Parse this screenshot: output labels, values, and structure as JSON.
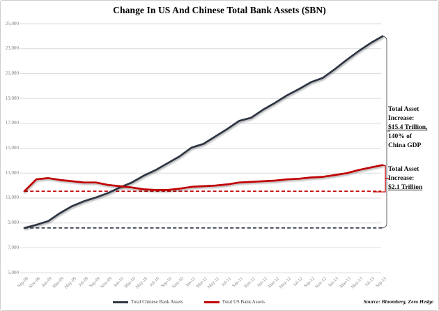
{
  "title": "Change In US And Chinese Total Bank Assets ($BN)",
  "source": "Source: Bloomberg, Zero Hedge",
  "colors": {
    "china_line": "#2d3642",
    "us_line": "#c00000",
    "china_dashed": "#3a424e",
    "us_dashed": "#c00000",
    "gridline": "#dadada",
    "axis_text": "#848484",
    "bracket_black": "#5f6368",
    "bracket_red": "#c00000"
  },
  "legend": [
    {
      "label": "Total Chinese Bank Assets",
      "color": "#2d3642"
    },
    {
      "label": "Total US Bank Assets",
      "color": "#c00000"
    }
  ],
  "annotations": {
    "china": {
      "lines": [
        "Total Asset",
        "Increase:",
        "$15.4 Trillion,",
        "140% of",
        "China GDP"
      ],
      "underline_index": 2
    },
    "us": {
      "lines": [
        "Total Asset",
        "Increase:",
        "$2.1 Trillion"
      ],
      "underline_index": 2
    }
  },
  "yaxis": {
    "ticks": [
      "25,000",
      "23,000",
      "21,000",
      "19,000",
      "17,000",
      "15,000",
      "13,000",
      "11,000",
      "9,000",
      "7,000",
      "5,000"
    ]
  },
  "chart_data": {
    "type": "line",
    "title": "Change In US And Chinese Total Bank Assets ($BN)",
    "xlabel": "",
    "ylabel": "",
    "ylim": [
      5000,
      25000
    ],
    "ytick_step": 2000,
    "grid": true,
    "legend_position": "bottom",
    "x": [
      "Sep-08",
      "Nov-08",
      "Jan-09",
      "Mar-09",
      "May-09",
      "Jul-09",
      "Sep-09",
      "Nov-09",
      "Jan-10",
      "Mar-10",
      "May-10",
      "Jul-10",
      "Sep-10",
      "Nov-10",
      "Jan-11",
      "Mar-11",
      "May-11",
      "Jul-11",
      "Sep-11",
      "Nov-11",
      "Jan-12",
      "Mar-12",
      "May-12",
      "Jul-12",
      "Sep-12",
      "Nov-12",
      "Jan-13",
      "Mar-13",
      "May-13",
      "Jul-13",
      "Sep-13"
    ],
    "series": [
      {
        "name": "Total Chinese Bank Assets",
        "color": "#2d3642",
        "values": [
          8600,
          8850,
          9150,
          9800,
          10350,
          10750,
          11050,
          11400,
          11850,
          12250,
          12800,
          13250,
          13800,
          14350,
          15050,
          15350,
          15950,
          16550,
          17200,
          17450,
          18100,
          18650,
          19250,
          19750,
          20300,
          20650,
          21350,
          22100,
          22800,
          23450,
          24000
        ]
      },
      {
        "name": "Total US Bank Assets",
        "color": "#c00000",
        "values": [
          11550,
          12500,
          12600,
          12450,
          12350,
          12250,
          12250,
          12050,
          11950,
          11850,
          11700,
          11650,
          11650,
          11750,
          11900,
          11950,
          12000,
          12100,
          12250,
          12300,
          12350,
          12400,
          12500,
          12550,
          12650,
          12700,
          12850,
          13000,
          13250,
          13450,
          13650
        ]
      }
    ],
    "baselines": [
      {
        "name": "china-start-level",
        "value": 8600,
        "style": "dashed",
        "color": "#3a424e"
      },
      {
        "name": "us-start-level",
        "value": 11550,
        "style": "dashed",
        "color": "#c00000"
      }
    ]
  }
}
